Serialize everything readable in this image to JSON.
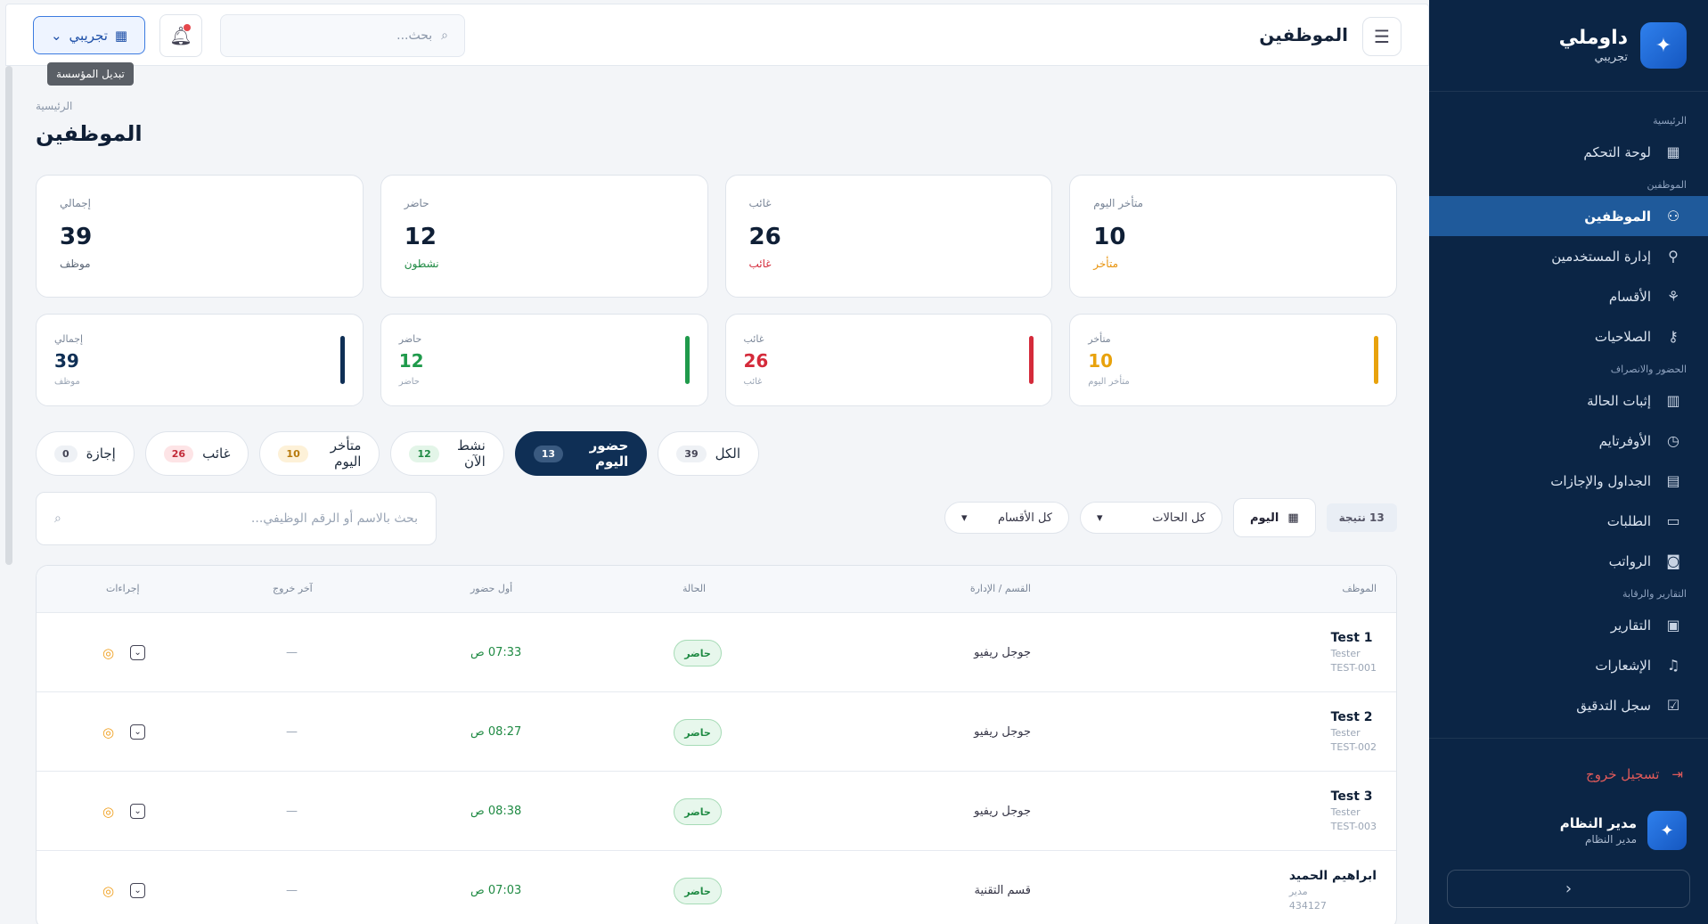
{
  "sidebar": {
    "brand_name": "داوملي",
    "brand_sub": "تجريبي",
    "sections": {
      "main": "الرئيسية",
      "employees": "الموظفين",
      "attendance": "الحضور والانصراف",
      "reports": "التقارير والرقابة"
    },
    "items": {
      "dashboard": "لوحة التحكم",
      "employees": "الموظفين",
      "users": "إدارة المستخدمين",
      "departments": "الأقسام",
      "permissions": "الصلاحيات",
      "status_proof": "إثبات الحالة",
      "overtime": "الأوفرتايم",
      "schedules": "الجداول والإجازات",
      "requests": "الطلبات",
      "payroll": "الرواتب",
      "reports": "التقارير",
      "notifications": "الإشعارات",
      "audit": "سجل التدقيق"
    },
    "logout": "تسجيل خروج",
    "user_name": "مدير النظام",
    "user_role": "مدير النظام"
  },
  "topbar": {
    "title": "الموظفين",
    "search_placeholder": "بحث...",
    "org_button": "تجريبي",
    "tooltip": "تبديل المؤسسة"
  },
  "page": {
    "breadcrumb": "الرئيسية",
    "title": "الموظفين"
  },
  "stats": [
    {
      "label": "إجمالي",
      "value": "39",
      "sub": "موظف",
      "color": "#5b6676"
    },
    {
      "label": "حاضر",
      "value": "12",
      "sub": "نشطون",
      "color": "#1f8a43"
    },
    {
      "label": "غائب",
      "value": "26",
      "sub": "غائب",
      "color": "#d42a3a"
    },
    {
      "label": "متأخر اليوم",
      "value": "10",
      "sub": "متأخر",
      "color": "#e8930c"
    }
  ],
  "mini_stats": [
    {
      "label": "إجمالي",
      "value": "39",
      "sub": "موظف",
      "color": "#0f2f55"
    },
    {
      "label": "حاضر",
      "value": "12",
      "sub": "حاضر",
      "color": "#1f9a4b"
    },
    {
      "label": "غائب",
      "value": "26",
      "sub": "غائب",
      "color": "#d42a3a"
    },
    {
      "label": "متأخر",
      "value": "10",
      "sub": "متأخر اليوم",
      "color": "#e8a20c"
    }
  ],
  "filters": [
    {
      "label": "الكل",
      "count": "39"
    },
    {
      "label": "حضور اليوم",
      "count": "13"
    },
    {
      "label": "نشط الآن",
      "count": "12"
    },
    {
      "label": "متأخر اليوم",
      "count": "10"
    },
    {
      "label": "غائب",
      "count": "26"
    },
    {
      "label": "إجازة",
      "count": "0"
    }
  ],
  "search_placeholder": "بحث بالاسم أو الرقم الوظيفي...",
  "toolbar": {
    "result_count": "13 نتيجة",
    "date_label": "اليوم",
    "status_filter": "كل الحالات",
    "dept_filter": "كل الأقسام"
  },
  "table": {
    "headers": {
      "employee": "الموظف",
      "department": "القسم / الإدارة",
      "status": "الحالة",
      "first_in": "أول حضور",
      "last_out": "آخر خروج",
      "actions": "إجراءات"
    },
    "rows": [
      {
        "name": "Test 1",
        "role": "Tester",
        "code": "TEST-001",
        "dept": "جوجل ريفيو",
        "status": "حاضر",
        "first_in": "07:33 ص",
        "last_out": "—"
      },
      {
        "name": "Test 2",
        "role": "Tester",
        "code": "TEST-002",
        "dept": "جوجل ريفيو",
        "status": "حاضر",
        "first_in": "08:27 ص",
        "last_out": "—"
      },
      {
        "name": "Test 3",
        "role": "Tester",
        "code": "TEST-003",
        "dept": "جوجل ريفيو",
        "status": "حاضر",
        "first_in": "08:38 ص",
        "last_out": "—"
      },
      {
        "name": "ابراهيم الحميد",
        "role": "مدير",
        "code": "434127",
        "dept": "قسم التقنية",
        "status": "حاضر",
        "first_in": "07:03 ص",
        "last_out": "—"
      }
    ]
  },
  "colors": {
    "sidebar_bg": "#0b2545",
    "active_nav": "#1f5a9b",
    "present_green": "#1f8a43",
    "absent_red": "#d42a3a",
    "late_orange": "#e8930c"
  }
}
